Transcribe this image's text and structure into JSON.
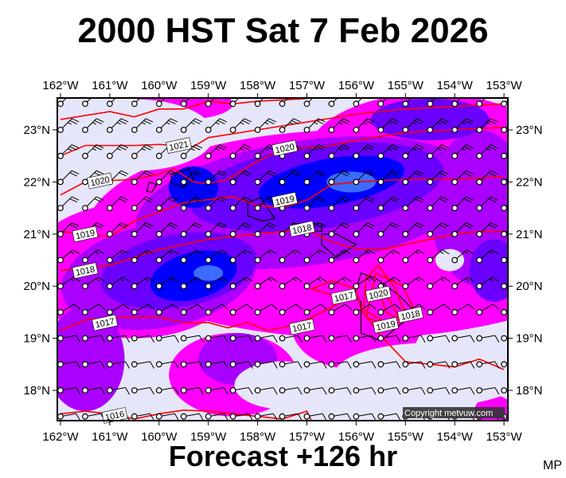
{
  "title": "2000 HST Sat 7 Feb 2026",
  "subtitle": "Forecast +126 hr",
  "corner_label": "MP",
  "copyright": "Copyright metvuw.com",
  "map": {
    "lon_range": [
      -162.07,
      -152.9
    ],
    "lat_range": [
      17.4,
      23.6
    ],
    "lon_ticks": [
      {
        "value": -162,
        "label": "162°W"
      },
      {
        "value": -161,
        "label": "161°W"
      },
      {
        "value": -160,
        "label": "160°W"
      },
      {
        "value": -159,
        "label": "159°W"
      },
      {
        "value": -158,
        "label": "158°W"
      },
      {
        "value": -157,
        "label": "157°W"
      },
      {
        "value": -156,
        "label": "156°W"
      },
      {
        "value": -155,
        "label": "155°W"
      },
      {
        "value": -154,
        "label": "154°W"
      },
      {
        "value": -153,
        "label": "153°W"
      }
    ],
    "lat_ticks": [
      {
        "value": 23,
        "label": "23°N"
      },
      {
        "value": 22,
        "label": "22°N"
      },
      {
        "value": 21,
        "label": "21°N"
      },
      {
        "value": 20,
        "label": "20°N"
      },
      {
        "value": 19,
        "label": "19°N"
      },
      {
        "value": 18,
        "label": "18°N"
      }
    ],
    "colors": {
      "background": "#e6e6fa",
      "magenta": "#ff00ff",
      "purple": "#aa00ff",
      "violet": "#6a00ff",
      "blue": "#0000ff",
      "light_blue": "#3a6cff",
      "isobar": "#ff0000",
      "coast": "#000000"
    },
    "isobars": [
      {
        "label": "",
        "points": [
          [
            -162,
            23.2
          ],
          [
            -161,
            23.35
          ],
          [
            -160.5,
            23.25
          ],
          [
            -160,
            23.4
          ],
          [
            -159.5,
            23.4
          ],
          [
            -159,
            23.55
          ],
          [
            -158.5,
            23.5
          ],
          [
            -158,
            23.55
          ],
          [
            -157,
            23.6
          ]
        ]
      },
      {
        "label": "1021",
        "label_at": [
          -159.6,
          22.7
        ],
        "points": [
          [
            -162,
            22.5
          ],
          [
            -161.5,
            22.7
          ],
          [
            -160.5,
            22.7
          ],
          [
            -160,
            22.72
          ],
          [
            -159.3,
            22.68
          ],
          [
            -159,
            22.85
          ],
          [
            -158,
            23.0
          ],
          [
            -157,
            23.15
          ],
          [
            -156,
            23.3
          ],
          [
            -155,
            23.4
          ],
          [
            -154,
            23.45
          ],
          [
            -153,
            23.5
          ]
        ]
      },
      {
        "label": "1020",
        "label_at": [
          -157.45,
          22.65
        ],
        "points": [
          [
            -162,
            21.75
          ],
          [
            -161.5,
            22.0
          ],
          [
            -160.5,
            22.05
          ],
          [
            -160,
            22.15
          ],
          [
            -159.7,
            22.25
          ],
          [
            -159.3,
            22.0
          ],
          [
            -159,
            21.97
          ],
          [
            -158.6,
            22.05
          ],
          [
            -158,
            22.4
          ],
          [
            -157.5,
            22.62
          ],
          [
            -156.6,
            22.68
          ],
          [
            -156,
            22.8
          ],
          [
            -155,
            22.95
          ],
          [
            -154,
            23.0
          ],
          [
            -153,
            23.05
          ]
        ]
      },
      {
        "label": "1020",
        "label_at": [
          -161.2,
          22.02
        ],
        "points": []
      },
      {
        "label": "1019",
        "label_at": [
          -157.45,
          21.65
        ],
        "points": [
          [
            -162,
            21.05
          ],
          [
            -161.5,
            21.0
          ],
          [
            -161,
            20.95
          ],
          [
            -160.5,
            21.25
          ],
          [
            -159.5,
            21.6
          ],
          [
            -158.5,
            21.72
          ],
          [
            -158,
            21.55
          ],
          [
            -157.5,
            21.5
          ],
          [
            -157,
            21.65
          ],
          [
            -156.5,
            21.95
          ],
          [
            -156,
            22.0
          ],
          [
            -155,
            22.05
          ],
          [
            -154,
            22.05
          ],
          [
            -153,
            22.1
          ]
        ]
      },
      {
        "label": "1019",
        "label_at": [
          -161.5,
          21.0
        ],
        "points": []
      },
      {
        "label": "1018",
        "label_at": [
          -157.1,
          21.1
        ],
        "points": [
          [
            -162,
            20.3
          ],
          [
            -161,
            20.4
          ],
          [
            -160,
            20.7
          ],
          [
            -159,
            20.9
          ],
          [
            -158,
            21.0
          ],
          [
            -157.5,
            21.05
          ],
          [
            -157,
            21.08
          ],
          [
            -156.5,
            20.85
          ],
          [
            -156,
            20.72
          ],
          [
            -155.5,
            20.7
          ],
          [
            -155,
            20.8
          ],
          [
            -154.5,
            20.9
          ],
          [
            -154,
            21.0
          ],
          [
            -153.5,
            21.05
          ],
          [
            -153,
            21.05
          ]
        ]
      },
      {
        "label": "1018",
        "label_at": [
          -161.5,
          20.3
        ],
        "points": []
      },
      {
        "label": "1017",
        "label_at": [
          -157.1,
          19.22
        ],
        "points": [
          [
            -162,
            19.15
          ],
          [
            -161.5,
            19.35
          ],
          [
            -161,
            19.4
          ],
          [
            -160.5,
            19.4
          ],
          [
            -160,
            19.4
          ],
          [
            -159.5,
            19.3
          ],
          [
            -159,
            19.3
          ],
          [
            -158.6,
            19.2
          ],
          [
            -158.2,
            19.3
          ],
          [
            -157.8,
            19.15
          ],
          [
            -157.5,
            19.2
          ],
          [
            -157,
            19.35
          ],
          [
            -156.6,
            19.55
          ],
          [
            -156.2,
            19.75
          ],
          [
            -156.9,
            19.95
          ],
          [
            -156.5,
            20.1
          ],
          [
            -156,
            19.95
          ],
          [
            -155.9,
            19.55
          ],
          [
            -155.5,
            19.05
          ],
          [
            -155,
            18.55
          ],
          [
            -154.5,
            18.5
          ],
          [
            -154,
            18.45
          ],
          [
            -153.5,
            18.6
          ],
          [
            -153,
            18.4
          ]
        ]
      },
      {
        "label": "1017",
        "label_at": [
          -161.1,
          19.3
        ],
        "points": []
      },
      {
        "label": "1017",
        "label_at": [
          -156.25,
          19.8
        ],
        "points": []
      },
      {
        "label": "1020",
        "label_at": [
          -155.55,
          19.85
        ],
        "points": [
          [
            -155.8,
            20.15
          ],
          [
            -155.55,
            20.4
          ],
          [
            -155.2,
            19.95
          ],
          [
            -155.0,
            19.45
          ],
          [
            -155.4,
            19.3
          ],
          [
            -155.85,
            19.55
          ],
          [
            -155.8,
            20.15
          ]
        ]
      },
      {
        "label": "1019",
        "label_at": [
          -155.4,
          19.25
        ],
        "points": [
          [
            -155.55,
            20.0
          ],
          [
            -155.3,
            19.7
          ],
          [
            -155.1,
            19.35
          ],
          [
            -155.4,
            19.5
          ],
          [
            -155.55,
            20.0
          ]
        ]
      },
      {
        "label": "1018",
        "label_at": [
          -154.9,
          19.45
        ],
        "points": [
          [
            -155.6,
            20.25
          ],
          [
            -155.05,
            20.0
          ],
          [
            -154.85,
            19.6
          ],
          [
            -155.2,
            19.2
          ],
          [
            -155.8,
            19.4
          ],
          [
            -155.6,
            20.25
          ]
        ]
      },
      {
        "label": "1016",
        "label_at": [
          -160.9,
          17.52
        ],
        "points": [
          [
            -162,
            17.55
          ],
          [
            -161.5,
            17.6
          ],
          [
            -161,
            17.55
          ],
          [
            -160.5,
            17.45
          ],
          [
            -160,
            17.55
          ],
          [
            -159.5,
            17.62
          ],
          [
            -159,
            17.6
          ],
          [
            -158.5,
            17.55
          ],
          [
            -158,
            17.5
          ],
          [
            -157.5,
            17.45
          ],
          [
            -157,
            17.6
          ],
          [
            -156.9,
            17.4
          ]
        ]
      }
    ],
    "wind_rows": [
      {
        "lat": 23.5,
        "dir_from": 45,
        "speed_kt": 25
      },
      {
        "lat": 23.0,
        "dir_from": 45,
        "speed_kt": 25
      },
      {
        "lat": 22.5,
        "dir_from": 45,
        "speed_kt": 25
      },
      {
        "lat": 22.0,
        "dir_from": 45,
        "speed_kt": 20
      },
      {
        "lat": 21.5,
        "dir_from": 45,
        "speed_kt": 20
      },
      {
        "lat": 21.0,
        "dir_from": 45,
        "speed_kt": 20
      },
      {
        "lat": 20.5,
        "dir_from": 50,
        "speed_kt": 15
      },
      {
        "lat": 20.0,
        "dir_from": 55,
        "speed_kt": 15
      },
      {
        "lat": 19.5,
        "dir_from": 60,
        "speed_kt": 10
      },
      {
        "lat": 19.0,
        "dir_from": 80,
        "speed_kt": 10
      },
      {
        "lat": 18.5,
        "dir_from": 80,
        "speed_kt": 10
      },
      {
        "lat": 18.0,
        "dir_from": 80,
        "speed_kt": 10
      },
      {
        "lat": 17.5,
        "dir_from": 80,
        "speed_kt": 10
      }
    ]
  }
}
